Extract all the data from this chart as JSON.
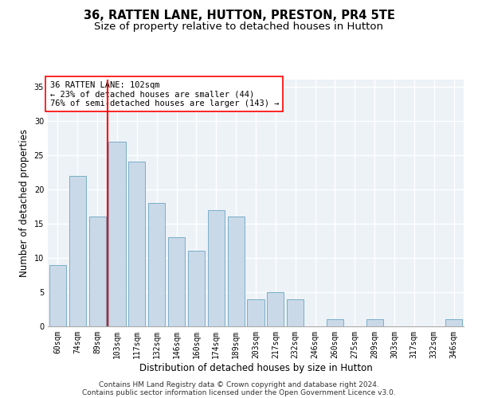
{
  "title": "36, RATTEN LANE, HUTTON, PRESTON, PR4 5TE",
  "subtitle": "Size of property relative to detached houses in Hutton",
  "xlabel": "Distribution of detached houses by size in Hutton",
  "ylabel": "Number of detached properties",
  "categories": [
    "60sqm",
    "74sqm",
    "89sqm",
    "103sqm",
    "117sqm",
    "132sqm",
    "146sqm",
    "160sqm",
    "174sqm",
    "189sqm",
    "203sqm",
    "217sqm",
    "232sqm",
    "246sqm",
    "260sqm",
    "275sqm",
    "289sqm",
    "303sqm",
    "317sqm",
    "332sqm",
    "346sqm"
  ],
  "values": [
    9,
    22,
    16,
    27,
    24,
    18,
    13,
    11,
    17,
    16,
    4,
    5,
    4,
    0,
    1,
    0,
    1,
    0,
    0,
    0,
    1
  ],
  "bar_color": "#c9d9e8",
  "bar_edge_color": "#7aaec8",
  "vline_index": 3,
  "vline_color": "red",
  "annotation_text": "36 RATTEN LANE: 102sqm\n← 23% of detached houses are smaller (44)\n76% of semi-detached houses are larger (143) →",
  "annotation_box_color": "white",
  "annotation_box_edge_color": "red",
  "ylim": [
    0,
    36
  ],
  "yticks": [
    0,
    5,
    10,
    15,
    20,
    25,
    30,
    35
  ],
  "footer_line1": "Contains HM Land Registry data © Crown copyright and database right 2024.",
  "footer_line2": "Contains public sector information licensed under the Open Government Licence v3.0.",
  "background_color": "#edf2f7",
  "grid_color": "white",
  "title_fontsize": 10.5,
  "subtitle_fontsize": 9.5,
  "tick_fontsize": 7,
  "ylabel_fontsize": 8.5,
  "xlabel_fontsize": 8.5,
  "annotation_fontsize": 7.5,
  "footer_fontsize": 6.5
}
